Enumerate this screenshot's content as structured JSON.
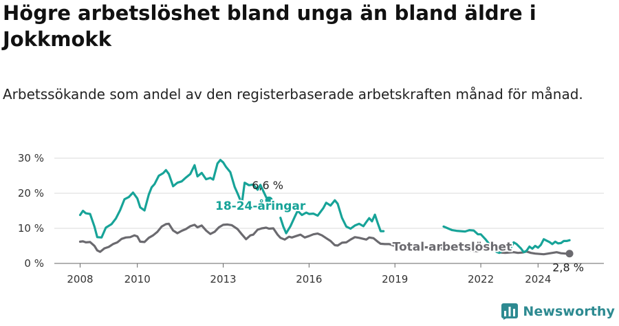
{
  "title": "Högre arbetslöshet bland unga än bland äldre i Jokkmokk",
  "subtitle": "Arbetssökande som andel av den registerbaserade arbetskraften månad för månad.",
  "brand": {
    "name": "Newsworthy",
    "icon": "bar-chart-icon",
    "color": "#2d8a91"
  },
  "chart_data": {
    "type": "line",
    "title": "Högre arbetslöshet bland unga än bland äldre i Jokkmokk",
    "subtitle": "Arbetssökande som andel av den registerbaserade arbetskraften månad för månad.",
    "xlabel": "",
    "ylabel": "",
    "x_range": [
      2007.1,
      2026.3
    ],
    "ylim": [
      0,
      30
    ],
    "y_ticks": [
      {
        "value": 0,
        "label": "0 %"
      },
      {
        "value": 10,
        "label": "10 %"
      },
      {
        "value": 20,
        "label": "20 %"
      },
      {
        "value": 30,
        "label": "30 %"
      }
    ],
    "x_ticks": [
      {
        "value": 2008,
        "label": "2008"
      },
      {
        "value": 2010,
        "label": "2010"
      },
      {
        "value": 2013,
        "label": "2013"
      },
      {
        "value": 2016,
        "label": "2016"
      },
      {
        "value": 2019,
        "label": "2019"
      },
      {
        "value": 2022,
        "label": "2022"
      },
      {
        "value": 2024,
        "label": "2024"
      }
    ],
    "grid": true,
    "legend": "inline labels",
    "series": [
      {
        "name": "18-24-åringar",
        "color": "#17a398",
        "end_label": "6,6 %",
        "points": [
          [
            2008.0,
            13.8
          ],
          [
            2008.1,
            15.0
          ],
          [
            2008.2,
            14.3
          ],
          [
            2008.35,
            14.1
          ],
          [
            2008.5,
            10.5
          ],
          [
            2008.6,
            7.5
          ],
          [
            2008.75,
            7.4
          ],
          [
            2008.9,
            10.2
          ],
          [
            2009.1,
            11.2
          ],
          [
            2009.25,
            12.8
          ],
          [
            2009.4,
            15.2
          ],
          [
            2009.55,
            18.3
          ],
          [
            2009.7,
            18.9
          ],
          [
            2009.85,
            20.2
          ],
          [
            2010.0,
            18.5
          ],
          [
            2010.1,
            16.0
          ],
          [
            2010.25,
            15.1
          ],
          [
            2010.4,
            19.6
          ],
          [
            2010.5,
            21.7
          ],
          [
            2010.6,
            22.6
          ],
          [
            2010.75,
            25.0
          ],
          [
            2010.9,
            25.7
          ],
          [
            2011.0,
            26.6
          ],
          [
            2011.1,
            25.5
          ],
          [
            2011.25,
            22.0
          ],
          [
            2011.4,
            23.0
          ],
          [
            2011.55,
            23.4
          ],
          [
            2011.7,
            24.5
          ],
          [
            2011.85,
            25.5
          ],
          [
            2012.0,
            28.0
          ],
          [
            2012.1,
            24.8
          ],
          [
            2012.25,
            25.8
          ],
          [
            2012.4,
            24.0
          ],
          [
            2012.55,
            24.4
          ],
          [
            2012.65,
            23.9
          ],
          [
            2012.8,
            28.5
          ],
          [
            2012.9,
            29.5
          ],
          [
            2013.0,
            28.8
          ],
          [
            2013.1,
            27.5
          ],
          [
            2013.25,
            26.0
          ],
          [
            2013.4,
            21.8
          ],
          [
            2013.5,
            20.0
          ],
          [
            2013.65,
            17.0
          ],
          [
            2013.75,
            23.0
          ],
          [
            2013.9,
            22.3
          ],
          [
            2014.05,
            22.5
          ],
          [
            2014.2,
            21.0
          ],
          [
            2014.3,
            22.4
          ],
          [
            2014.5,
            18.9
          ],
          [
            2014.6,
            18.0
          ]
        ]
      },
      {
        "name": "18-24-åringar",
        "color": "#17a398",
        "points": [
          [
            2015.0,
            13.0
          ],
          [
            2015.1,
            10.5
          ],
          [
            2015.2,
            8.6
          ],
          [
            2015.35,
            10.6
          ],
          [
            2015.5,
            13.3
          ],
          [
            2015.6,
            15.0
          ],
          [
            2015.75,
            13.8
          ],
          [
            2015.9,
            14.5
          ],
          [
            2016.0,
            14.1
          ],
          [
            2016.15,
            14.2
          ],
          [
            2016.3,
            13.6
          ],
          [
            2016.5,
            15.8
          ],
          [
            2016.6,
            17.3
          ],
          [
            2016.75,
            16.5
          ],
          [
            2016.9,
            18.0
          ],
          [
            2017.0,
            17.0
          ],
          [
            2017.15,
            13.0
          ],
          [
            2017.3,
            10.5
          ],
          [
            2017.45,
            9.9
          ],
          [
            2017.6,
            10.8
          ],
          [
            2017.75,
            11.3
          ],
          [
            2017.9,
            10.6
          ],
          [
            2018.0,
            11.8
          ],
          [
            2018.1,
            12.9
          ],
          [
            2018.2,
            12.0
          ],
          [
            2018.3,
            13.9
          ],
          [
            2018.4,
            11.5
          ],
          [
            2018.5,
            9.2
          ],
          [
            2018.6,
            9.2
          ]
        ]
      },
      {
        "name": "18-24-åringar",
        "color": "#17a398",
        "points": [
          [
            2020.7,
            10.5
          ],
          [
            2020.85,
            10.0
          ],
          [
            2021.0,
            9.5
          ],
          [
            2021.15,
            9.3
          ],
          [
            2021.3,
            9.2
          ],
          [
            2021.45,
            9.1
          ],
          [
            2021.6,
            9.5
          ],
          [
            2021.75,
            9.4
          ],
          [
            2021.9,
            8.3
          ],
          [
            2022.0,
            8.3
          ],
          [
            2022.15,
            7.0
          ],
          [
            2022.3,
            5.5
          ],
          [
            2022.45,
            4.0
          ],
          [
            2022.55,
            3.3
          ],
          [
            2022.65,
            3.0
          ],
          [
            2022.75,
            3.6
          ],
          [
            2022.85,
            4.5
          ],
          [
            2022.95,
            6.0
          ],
          [
            2023.05,
            4.4
          ],
          [
            2023.15,
            6.0
          ],
          [
            2023.25,
            5.5
          ],
          [
            2023.4,
            4.3
          ],
          [
            2023.5,
            3.2
          ],
          [
            2023.6,
            3.6
          ],
          [
            2023.7,
            4.8
          ],
          [
            2023.8,
            4.2
          ],
          [
            2023.9,
            5.0
          ],
          [
            2024.0,
            4.5
          ],
          [
            2024.1,
            5.3
          ],
          [
            2024.2,
            6.9
          ],
          [
            2024.3,
            6.5
          ],
          [
            2024.4,
            6.1
          ],
          [
            2024.5,
            5.5
          ],
          [
            2024.6,
            6.2
          ],
          [
            2024.7,
            5.7
          ],
          [
            2024.8,
            5.8
          ],
          [
            2024.9,
            6.4
          ],
          [
            2025.0,
            6.4
          ],
          [
            2025.1,
            6.6
          ]
        ]
      },
      {
        "name": "Total arbetslöshet",
        "color": "#6b6a6f",
        "end_label": "2,8 %",
        "points": [
          [
            2008.0,
            6.2
          ],
          [
            2008.1,
            6.3
          ],
          [
            2008.2,
            6.0
          ],
          [
            2008.35,
            6.1
          ],
          [
            2008.5,
            5.0
          ],
          [
            2008.6,
            3.7
          ],
          [
            2008.7,
            3.3
          ],
          [
            2008.85,
            4.3
          ],
          [
            2009.0,
            4.7
          ],
          [
            2009.15,
            5.5
          ],
          [
            2009.3,
            6.0
          ],
          [
            2009.45,
            7.0
          ],
          [
            2009.6,
            7.4
          ],
          [
            2009.75,
            7.5
          ],
          [
            2009.9,
            8.0
          ],
          [
            2010.0,
            7.7
          ],
          [
            2010.1,
            6.2
          ],
          [
            2010.25,
            6.1
          ],
          [
            2010.4,
            7.3
          ],
          [
            2010.55,
            8.0
          ],
          [
            2010.7,
            9.0
          ],
          [
            2010.85,
            10.5
          ],
          [
            2011.0,
            11.2
          ],
          [
            2011.1,
            11.3
          ],
          [
            2011.25,
            9.4
          ],
          [
            2011.4,
            8.6
          ],
          [
            2011.55,
            9.3
          ],
          [
            2011.7,
            9.8
          ],
          [
            2011.85,
            10.6
          ],
          [
            2012.0,
            11.0
          ],
          [
            2012.1,
            10.3
          ],
          [
            2012.25,
            10.8
          ],
          [
            2012.4,
            9.4
          ],
          [
            2012.55,
            8.4
          ],
          [
            2012.7,
            9.0
          ],
          [
            2012.85,
            10.3
          ],
          [
            2013.0,
            11.0
          ],
          [
            2013.15,
            11.1
          ],
          [
            2013.3,
            10.9
          ],
          [
            2013.5,
            9.8
          ],
          [
            2013.65,
            8.3
          ],
          [
            2013.8,
            6.9
          ],
          [
            2013.95,
            8.0
          ],
          [
            2014.05,
            8.2
          ],
          [
            2014.2,
            9.6
          ],
          [
            2014.35,
            10.0
          ],
          [
            2014.5,
            10.2
          ],
          [
            2014.6,
            9.9
          ],
          [
            2014.75,
            10.0
          ],
          [
            2014.9,
            8.2
          ],
          [
            2015.0,
            7.3
          ],
          [
            2015.15,
            6.8
          ],
          [
            2015.3,
            7.6
          ],
          [
            2015.4,
            7.4
          ],
          [
            2015.55,
            7.8
          ],
          [
            2015.7,
            8.2
          ],
          [
            2015.85,
            7.4
          ],
          [
            2016.0,
            7.8
          ],
          [
            2016.15,
            8.3
          ],
          [
            2016.3,
            8.5
          ],
          [
            2016.45,
            8.0
          ],
          [
            2016.6,
            7.2
          ],
          [
            2016.75,
            6.4
          ],
          [
            2016.9,
            5.2
          ],
          [
            2017.0,
            5.1
          ],
          [
            2017.15,
            5.9
          ],
          [
            2017.3,
            6.0
          ],
          [
            2017.45,
            6.8
          ],
          [
            2017.6,
            7.5
          ],
          [
            2017.75,
            7.3
          ],
          [
            2017.9,
            7.0
          ],
          [
            2018.0,
            6.8
          ],
          [
            2018.1,
            7.4
          ],
          [
            2018.25,
            7.2
          ],
          [
            2018.4,
            6.2
          ],
          [
            2018.5,
            5.6
          ],
          [
            2018.65,
            5.5
          ],
          [
            2018.8,
            5.5
          ],
          [
            2018.95,
            5.1
          ],
          [
            2019.05,
            5.0
          ],
          [
            2019.2,
            4.8
          ],
          [
            2019.35,
            4.8
          ],
          [
            2019.5,
            4.9
          ],
          [
            2019.65,
            5.0
          ],
          [
            2019.8,
            4.6
          ],
          [
            2019.95,
            4.5
          ],
          [
            2020.1,
            4.6
          ],
          [
            2020.25,
            4.4
          ],
          [
            2020.4,
            4.2
          ],
          [
            2020.55,
            4.5
          ],
          [
            2020.7,
            4.1
          ],
          [
            2020.85,
            4.0
          ],
          [
            2021.0,
            3.9
          ],
          [
            2021.15,
            3.9
          ],
          [
            2021.3,
            3.9
          ],
          [
            2021.45,
            3.8
          ],
          [
            2021.6,
            3.7
          ],
          [
            2021.75,
            3.5
          ],
          [
            2021.9,
            3.5
          ],
          [
            2022.0,
            3.8
          ],
          [
            2022.15,
            4.1
          ],
          [
            2022.3,
            4.2
          ],
          [
            2022.45,
            4.0
          ],
          [
            2022.55,
            3.4
          ],
          [
            2022.7,
            3.1
          ],
          [
            2022.85,
            3.0
          ],
          [
            2023.0,
            3.1
          ],
          [
            2023.15,
            3.2
          ],
          [
            2023.3,
            3.0
          ],
          [
            2023.45,
            3.1
          ],
          [
            2023.6,
            3.4
          ],
          [
            2023.75,
            3.0
          ],
          [
            2023.9,
            2.8
          ],
          [
            2024.05,
            2.7
          ],
          [
            2024.2,
            2.6
          ],
          [
            2024.35,
            2.8
          ],
          [
            2024.5,
            3.0
          ],
          [
            2024.65,
            3.2
          ],
          [
            2024.8,
            2.9
          ],
          [
            2024.95,
            2.8
          ],
          [
            2025.1,
            2.8
          ]
        ]
      }
    ],
    "annotations": [
      {
        "text": "18-24-åringar",
        "x": 2014.3,
        "y": 16.5,
        "color": "#17a398",
        "bold": true
      },
      {
        "text": "Total arbetslöshet",
        "x": 2021.0,
        "y": 4.8,
        "color": "#6b6a6f",
        "bold": true
      }
    ]
  }
}
